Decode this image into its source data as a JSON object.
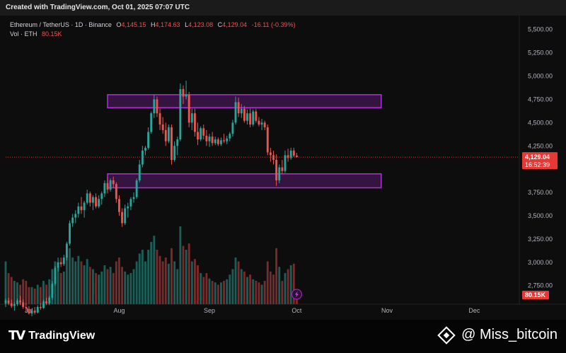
{
  "header": {
    "created_text": "Created with TradingView.com, Oct 01, 2025 07:07 UTC"
  },
  "legend": {
    "symbol": "Ethereum / TetherUS · 1D · Binance",
    "open_label": "O",
    "open_value": "4,145.15",
    "high_label": "H",
    "high_value": "4,174.63",
    "low_label": "L",
    "low_value": "4,123.08",
    "close_label": "C",
    "close_value": "4,129.04",
    "change": "-16.11 (-0.39%)",
    "vol_label": "Vol · ETH",
    "vol_value": "80.15K"
  },
  "footer": {
    "logo_text": "TradingView",
    "credit_text": "@ Miss_bitcoin"
  },
  "colors": {
    "up": "#26a69a",
    "down": "#ef5350",
    "vol_up": "#1b5e57",
    "vol_down": "#7a2a2a",
    "zone": "#b030d8",
    "price_tag": "#e53935"
  },
  "chart_data": {
    "type": "candlestick",
    "title": "Ethereum / TetherUS · 1D · Binance",
    "y_ticks": [
      "5,500.00",
      "5,250.00",
      "5,000.00",
      "4,750.00",
      "4,500.00",
      "4,250.00",
      "3,750.00",
      "3,500.00",
      "3,250.00",
      "3,000.00",
      "2,750.00"
    ],
    "ylim": [
      2550,
      5650
    ],
    "x_ticks": [
      {
        "label": "Jul",
        "day": 0
      },
      {
        "label": "Aug",
        "day": 31
      },
      {
        "label": "Sep",
        "day": 62
      },
      {
        "label": "Oct",
        "day": 92
      },
      {
        "label": "Nov",
        "day": 123
      },
      {
        "label": "Dec",
        "day": 153
      }
    ],
    "x_range": [
      -8,
      167
    ],
    "last_price_label": "4,129.04",
    "countdown_label": "16:52:39",
    "volume_label": "80.15K",
    "zones": [
      {
        "low": 4660,
        "high": 4800,
        "start_day": 27,
        "end_day": 121
      },
      {
        "low": 3800,
        "high": 3950,
        "start_day": 27,
        "end_day": 121
      }
    ],
    "candles": [
      {
        "d": -8,
        "o": 2560,
        "h": 2610,
        "l": 2520,
        "c": 2590,
        "v": 0.55
      },
      {
        "d": -7,
        "o": 2590,
        "h": 2620,
        "l": 2540,
        "c": 2560,
        "v": 0.4
      },
      {
        "d": -6,
        "o": 2560,
        "h": 2600,
        "l": 2510,
        "c": 2530,
        "v": 0.35
      },
      {
        "d": -5,
        "o": 2530,
        "h": 2570,
        "l": 2480,
        "c": 2550,
        "v": 0.3
      },
      {
        "d": -4,
        "o": 2550,
        "h": 2610,
        "l": 2530,
        "c": 2590,
        "v": 0.28
      },
      {
        "d": -3,
        "o": 2590,
        "h": 2640,
        "l": 2540,
        "c": 2570,
        "v": 0.25
      },
      {
        "d": -2,
        "o": 2570,
        "h": 2600,
        "l": 2500,
        "c": 2520,
        "v": 0.32
      },
      {
        "d": -1,
        "o": 2520,
        "h": 2560,
        "l": 2470,
        "c": 2510,
        "v": 0.3
      },
      {
        "d": 0,
        "o": 2500,
        "h": 2530,
        "l": 2440,
        "c": 2450,
        "v": 0.22
      },
      {
        "d": 1,
        "o": 2450,
        "h": 2500,
        "l": 2420,
        "c": 2480,
        "v": 0.22
      },
      {
        "d": 2,
        "o": 2480,
        "h": 2520,
        "l": 2440,
        "c": 2460,
        "v": 0.2
      },
      {
        "d": 3,
        "o": 2460,
        "h": 2540,
        "l": 2450,
        "c": 2520,
        "v": 0.25
      },
      {
        "d": 4,
        "o": 2520,
        "h": 2560,
        "l": 2490,
        "c": 2510,
        "v": 0.22
      },
      {
        "d": 5,
        "o": 2510,
        "h": 2600,
        "l": 2500,
        "c": 2580,
        "v": 0.3
      },
      {
        "d": 6,
        "o": 2580,
        "h": 2620,
        "l": 2540,
        "c": 2560,
        "v": 0.25
      },
      {
        "d": 7,
        "o": 2560,
        "h": 2640,
        "l": 2540,
        "c": 2620,
        "v": 0.32
      },
      {
        "d": 8,
        "o": 2620,
        "h": 2800,
        "l": 2600,
        "c": 2770,
        "v": 0.45
      },
      {
        "d": 9,
        "o": 2770,
        "h": 2960,
        "l": 2750,
        "c": 2940,
        "v": 0.55
      },
      {
        "d": 10,
        "o": 2940,
        "h": 3050,
        "l": 2900,
        "c": 3000,
        "v": 0.5
      },
      {
        "d": 11,
        "o": 3000,
        "h": 3050,
        "l": 2950,
        "c": 2980,
        "v": 0.4
      },
      {
        "d": 12,
        "o": 2980,
        "h": 3080,
        "l": 2960,
        "c": 3050,
        "v": 0.42
      },
      {
        "d": 13,
        "o": 3050,
        "h": 3220,
        "l": 3020,
        "c": 3200,
        "v": 0.62
      },
      {
        "d": 14,
        "o": 3200,
        "h": 3450,
        "l": 3180,
        "c": 3420,
        "v": 0.72
      },
      {
        "d": 15,
        "o": 3420,
        "h": 3520,
        "l": 3380,
        "c": 3480,
        "v": 0.6
      },
      {
        "d": 16,
        "o": 3480,
        "h": 3560,
        "l": 3420,
        "c": 3520,
        "v": 0.55
      },
      {
        "d": 17,
        "o": 3520,
        "h": 3640,
        "l": 3480,
        "c": 3600,
        "v": 0.62
      },
      {
        "d": 18,
        "o": 3600,
        "h": 3700,
        "l": 3520,
        "c": 3560,
        "v": 0.55
      },
      {
        "d": 19,
        "o": 3560,
        "h": 3660,
        "l": 3480,
        "c": 3640,
        "v": 0.5
      },
      {
        "d": 20,
        "o": 3640,
        "h": 3780,
        "l": 3620,
        "c": 3740,
        "v": 0.58
      },
      {
        "d": 21,
        "o": 3740,
        "h": 3760,
        "l": 3600,
        "c": 3640,
        "v": 0.48
      },
      {
        "d": 22,
        "o": 3640,
        "h": 3720,
        "l": 3560,
        "c": 3700,
        "v": 0.45
      },
      {
        "d": 23,
        "o": 3700,
        "h": 3740,
        "l": 3580,
        "c": 3600,
        "v": 0.4
      },
      {
        "d": 24,
        "o": 3600,
        "h": 3720,
        "l": 3580,
        "c": 3680,
        "v": 0.38
      },
      {
        "d": 25,
        "o": 3680,
        "h": 3760,
        "l": 3620,
        "c": 3740,
        "v": 0.42
      },
      {
        "d": 26,
        "o": 3740,
        "h": 3880,
        "l": 3700,
        "c": 3850,
        "v": 0.5
      },
      {
        "d": 27,
        "o": 3850,
        "h": 3900,
        "l": 3740,
        "c": 3780,
        "v": 0.45
      },
      {
        "d": 28,
        "o": 3780,
        "h": 3900,
        "l": 3760,
        "c": 3880,
        "v": 0.48
      },
      {
        "d": 29,
        "o": 3880,
        "h": 3920,
        "l": 3800,
        "c": 3840,
        "v": 0.4
      },
      {
        "d": 30,
        "o": 3840,
        "h": 3860,
        "l": 3640,
        "c": 3680,
        "v": 0.55
      },
      {
        "d": 31,
        "o": 3680,
        "h": 3720,
        "l": 3500,
        "c": 3540,
        "v": 0.6
      },
      {
        "d": 32,
        "o": 3540,
        "h": 3580,
        "l": 3380,
        "c": 3420,
        "v": 0.48
      },
      {
        "d": 33,
        "o": 3420,
        "h": 3620,
        "l": 3400,
        "c": 3580,
        "v": 0.42
      },
      {
        "d": 34,
        "o": 3580,
        "h": 3640,
        "l": 3480,
        "c": 3600,
        "v": 0.38
      },
      {
        "d": 35,
        "o": 3600,
        "h": 3700,
        "l": 3560,
        "c": 3680,
        "v": 0.4
      },
      {
        "d": 36,
        "o": 3680,
        "h": 3750,
        "l": 3640,
        "c": 3700,
        "v": 0.45
      },
      {
        "d": 37,
        "o": 3700,
        "h": 3900,
        "l": 3680,
        "c": 3880,
        "v": 0.55
      },
      {
        "d": 38,
        "o": 3880,
        "h": 4100,
        "l": 3860,
        "c": 4050,
        "v": 0.65
      },
      {
        "d": 39,
        "o": 4050,
        "h": 4250,
        "l": 4020,
        "c": 4200,
        "v": 0.7
      },
      {
        "d": 40,
        "o": 4200,
        "h": 4250,
        "l": 4150,
        "c": 4230,
        "v": 0.55
      },
      {
        "d": 41,
        "o": 4230,
        "h": 4450,
        "l": 4210,
        "c": 4400,
        "v": 0.7
      },
      {
        "d": 42,
        "o": 4400,
        "h": 4620,
        "l": 4380,
        "c": 4600,
        "v": 0.8
      },
      {
        "d": 43,
        "o": 4600,
        "h": 4800,
        "l": 4550,
        "c": 4750,
        "v": 0.88
      },
      {
        "d": 44,
        "o": 4750,
        "h": 4780,
        "l": 4560,
        "c": 4600,
        "v": 0.7
      },
      {
        "d": 45,
        "o": 4600,
        "h": 4650,
        "l": 4420,
        "c": 4480,
        "v": 0.62
      },
      {
        "d": 46,
        "o": 4480,
        "h": 4560,
        "l": 4380,
        "c": 4420,
        "v": 0.55
      },
      {
        "d": 47,
        "o": 4420,
        "h": 4500,
        "l": 4250,
        "c": 4300,
        "v": 0.6
      },
      {
        "d": 48,
        "o": 4300,
        "h": 4480,
        "l": 4280,
        "c": 4450,
        "v": 0.52
      },
      {
        "d": 49,
        "o": 4450,
        "h": 4480,
        "l": 4050,
        "c": 4100,
        "v": 0.72
      },
      {
        "d": 50,
        "o": 4100,
        "h": 4300,
        "l": 4080,
        "c": 4250,
        "v": 0.55
      },
      {
        "d": 51,
        "o": 4250,
        "h": 4350,
        "l": 4150,
        "c": 4320,
        "v": 0.45
      },
      {
        "d": 52,
        "o": 4320,
        "h": 4920,
        "l": 4300,
        "c": 4860,
        "v": 1.0
      },
      {
        "d": 53,
        "o": 4860,
        "h": 4900,
        "l": 4700,
        "c": 4780,
        "v": 0.75
      },
      {
        "d": 54,
        "o": 4780,
        "h": 4950,
        "l": 4750,
        "c": 4800,
        "v": 0.7
      },
      {
        "d": 55,
        "o": 4800,
        "h": 4830,
        "l": 4450,
        "c": 4500,
        "v": 0.78
      },
      {
        "d": 56,
        "o": 4500,
        "h": 4650,
        "l": 4420,
        "c": 4600,
        "v": 0.55
      },
      {
        "d": 57,
        "o": 4600,
        "h": 4650,
        "l": 4350,
        "c": 4400,
        "v": 0.58
      },
      {
        "d": 58,
        "o": 4400,
        "h": 4500,
        "l": 4260,
        "c": 4320,
        "v": 0.5
      },
      {
        "d": 59,
        "o": 4320,
        "h": 4460,
        "l": 4300,
        "c": 4440,
        "v": 0.4
      },
      {
        "d": 60,
        "o": 4440,
        "h": 4480,
        "l": 4320,
        "c": 4360,
        "v": 0.35
      },
      {
        "d": 61,
        "o": 4360,
        "h": 4420,
        "l": 4250,
        "c": 4300,
        "v": 0.4
      },
      {
        "d": 62,
        "o": 4300,
        "h": 4380,
        "l": 4240,
        "c": 4350,
        "v": 0.33
      },
      {
        "d": 63,
        "o": 4350,
        "h": 4400,
        "l": 4250,
        "c": 4280,
        "v": 0.3
      },
      {
        "d": 64,
        "o": 4280,
        "h": 4350,
        "l": 4260,
        "c": 4320,
        "v": 0.28
      },
      {
        "d": 65,
        "o": 4320,
        "h": 4340,
        "l": 4250,
        "c": 4270,
        "v": 0.25
      },
      {
        "d": 66,
        "o": 4270,
        "h": 4340,
        "l": 4250,
        "c": 4310,
        "v": 0.28
      },
      {
        "d": 67,
        "o": 4310,
        "h": 4380,
        "l": 4280,
        "c": 4300,
        "v": 0.3
      },
      {
        "d": 68,
        "o": 4300,
        "h": 4360,
        "l": 4270,
        "c": 4330,
        "v": 0.32
      },
      {
        "d": 69,
        "o": 4330,
        "h": 4400,
        "l": 4300,
        "c": 4380,
        "v": 0.38
      },
      {
        "d": 70,
        "o": 4380,
        "h": 4530,
        "l": 4350,
        "c": 4500,
        "v": 0.45
      },
      {
        "d": 71,
        "o": 4500,
        "h": 4780,
        "l": 4480,
        "c": 4720,
        "v": 0.6
      },
      {
        "d": 72,
        "o": 4720,
        "h": 4770,
        "l": 4560,
        "c": 4600,
        "v": 0.55
      },
      {
        "d": 73,
        "o": 4600,
        "h": 4700,
        "l": 4550,
        "c": 4650,
        "v": 0.45
      },
      {
        "d": 74,
        "o": 4650,
        "h": 4680,
        "l": 4500,
        "c": 4520,
        "v": 0.42
      },
      {
        "d": 75,
        "o": 4520,
        "h": 4640,
        "l": 4480,
        "c": 4600,
        "v": 0.35
      },
      {
        "d": 76,
        "o": 4600,
        "h": 4650,
        "l": 4450,
        "c": 4480,
        "v": 0.38
      },
      {
        "d": 77,
        "o": 4480,
        "h": 4640,
        "l": 4460,
        "c": 4620,
        "v": 0.32
      },
      {
        "d": 78,
        "o": 4620,
        "h": 4650,
        "l": 4500,
        "c": 4520,
        "v": 0.3
      },
      {
        "d": 79,
        "o": 4520,
        "h": 4560,
        "l": 4460,
        "c": 4480,
        "v": 0.28
      },
      {
        "d": 80,
        "o": 4480,
        "h": 4540,
        "l": 4420,
        "c": 4500,
        "v": 0.25
      },
      {
        "d": 81,
        "o": 4500,
        "h": 4520,
        "l": 4420,
        "c": 4450,
        "v": 0.3
      },
      {
        "d": 82,
        "o": 4450,
        "h": 4480,
        "l": 4150,
        "c": 4180,
        "v": 0.55
      },
      {
        "d": 83,
        "o": 4180,
        "h": 4230,
        "l": 4080,
        "c": 4150,
        "v": 0.42
      },
      {
        "d": 84,
        "o": 4150,
        "h": 4200,
        "l": 4050,
        "c": 4100,
        "v": 0.38
      },
      {
        "d": 85,
        "o": 4100,
        "h": 4160,
        "l": 3820,
        "c": 3880,
        "v": 0.72
      },
      {
        "d": 86,
        "o": 3880,
        "h": 4050,
        "l": 3850,
        "c": 4020,
        "v": 0.48
      },
      {
        "d": 87,
        "o": 4020,
        "h": 4100,
        "l": 3950,
        "c": 3980,
        "v": 0.3
      },
      {
        "d": 88,
        "o": 3980,
        "h": 4200,
        "l": 3960,
        "c": 4150,
        "v": 0.4
      },
      {
        "d": 89,
        "o": 4150,
        "h": 4220,
        "l": 4080,
        "c": 4120,
        "v": 0.45
      },
      {
        "d": 90,
        "o": 4120,
        "h": 4230,
        "l": 4100,
        "c": 4200,
        "v": 0.5
      },
      {
        "d": 91,
        "o": 4200,
        "h": 4230,
        "l": 4130,
        "c": 4145,
        "v": 0.52
      },
      {
        "d": 92,
        "o": 4145,
        "h": 4175,
        "l": 4123,
        "c": 4129,
        "v": 0.1
      }
    ]
  }
}
